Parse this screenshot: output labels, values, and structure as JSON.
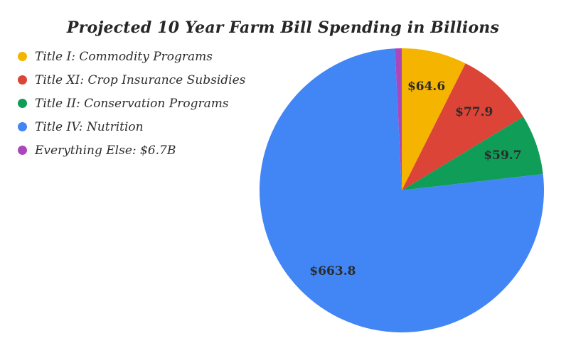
{
  "chart_data": {
    "type": "pie",
    "title": "Projected 10 Year Farm Bill Spending in Billions",
    "legend_position": "left",
    "start_angle_deg_from_12_oclock": 0,
    "direction": "clockwise",
    "slices": [
      {
        "legend_label": "Title I: Commodity Programs",
        "value": 64.6,
        "slice_label": "$64.6",
        "color": "#F4B400"
      },
      {
        "legend_label": "Title XI: Crop Insurance Subsidies",
        "value": 77.9,
        "slice_label": "$77.9",
        "color": "#DB4437"
      },
      {
        "legend_label": "Title II: Conservation Programs",
        "value": 59.7,
        "slice_label": "$59.7",
        "color": "#0F9D58"
      },
      {
        "legend_label": "Title IV: Nutrition",
        "value": 663.8,
        "slice_label": "$663.8",
        "color": "#4285F4"
      },
      {
        "legend_label": "Everything Else: $6.7B",
        "value": 6.7,
        "slice_label": "",
        "color": "#AB47BC"
      }
    ]
  }
}
